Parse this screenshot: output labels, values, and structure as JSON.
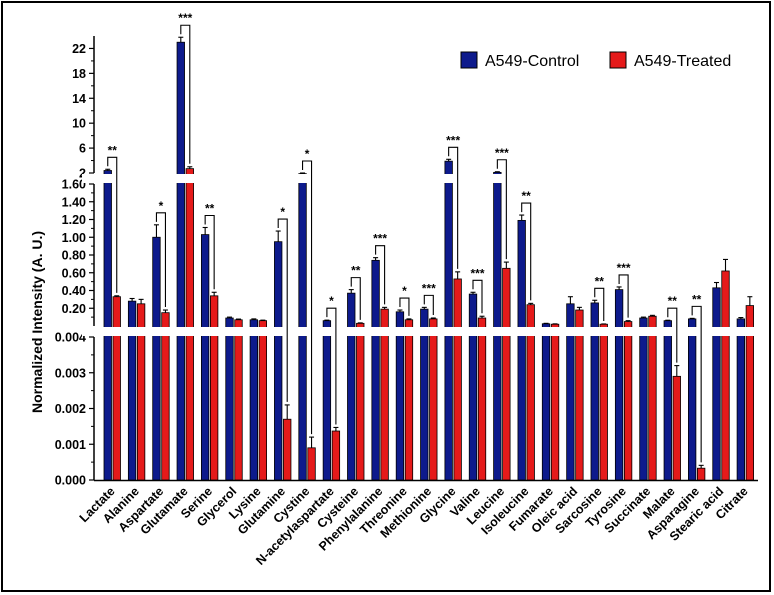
{
  "chart_data": {
    "type": "bar",
    "ylabel": "Normalized Intensity (A. U.)",
    "legend_position": "top-right",
    "colors": {
      "control": "#0d1a8c",
      "treated": "#e51a1a"
    },
    "y_segments": [
      {
        "range": [
          0,
          0.004
        ],
        "ticks": [
          "0.000",
          "0.001",
          "0.002",
          "0.003",
          "0.004"
        ]
      },
      {
        "range": [
          0,
          1.6
        ],
        "ticks": [
          "0.20",
          "0.40",
          "0.60",
          "0.80",
          "1.00",
          "1.20",
          "1.40",
          "1.60"
        ]
      },
      {
        "range": [
          2,
          24
        ],
        "ticks": [
          "2",
          "6",
          "10",
          "14",
          "18",
          "22"
        ]
      }
    ],
    "categories": [
      "Lactate",
      "Alanine",
      "Aspartate",
      "Glutamate",
      "Serine",
      "Glycerol",
      "Lysine",
      "Glutamine",
      "Cystine",
      "N-acetylaspartate",
      "Cysteine",
      "Phenylalanine",
      "Threonine",
      "Methionine",
      "Glycine",
      "Valine",
      "Leucine",
      "Isoleucine",
      "Fumarate",
      "Oleic acid",
      "Sarcosine",
      "Tyrosine",
      "Succinate",
      "Malate",
      "Asparagine",
      "Stearic acid",
      "Citrate"
    ],
    "series": [
      {
        "name": "A549-Control",
        "values": [
          2.4,
          0.28,
          1.0,
          23,
          1.03,
          0.09,
          0.07,
          0.95,
          1.9,
          0.06,
          0.37,
          0.74,
          0.16,
          0.19,
          3.9,
          0.36,
          2.1,
          1.19,
          0.025,
          0.25,
          0.26,
          0.41,
          0.09,
          0.06,
          0.08,
          0.43,
          0.08
        ],
        "errors": [
          0.2,
          0.03,
          0.14,
          0.8,
          0.08,
          0.01,
          0.01,
          0.12,
          0.1,
          0.006,
          0.04,
          0.03,
          0.02,
          0.02,
          0.3,
          0.02,
          0.1,
          0.06,
          0.005,
          0.08,
          0.03,
          0.03,
          0.01,
          0.005,
          0.006,
          0.06,
          0.015
        ]
      },
      {
        "name": "A549-Treated",
        "values": [
          0.33,
          0.25,
          0.15,
          2.7,
          0.34,
          0.07,
          0.06,
          0.0017,
          0.0009,
          0.00137,
          0.03,
          0.19,
          0.07,
          0.08,
          0.53,
          0.09,
          0.65,
          0.24,
          0.02,
          0.18,
          0.02,
          0.05,
          0.11,
          0.0029,
          0.00033,
          0.62,
          0.23
        ],
        "errors": [
          0.01,
          0.05,
          0.03,
          0.3,
          0.04,
          0.008,
          0.006,
          0.0004,
          0.0003,
          0.0001,
          0.005,
          0.02,
          0.01,
          0.01,
          0.08,
          0.02,
          0.07,
          0.015,
          0.004,
          0.03,
          0.003,
          0.01,
          0.01,
          0.0003,
          8e-05,
          0.13,
          0.1
        ]
      }
    ],
    "significance": [
      "**",
      "",
      "*",
      "***",
      "**",
      "",
      "",
      "*",
      "*",
      "*",
      "**",
      "***",
      "*",
      "***",
      "***",
      "***",
      "***",
      "**",
      "",
      "",
      "**",
      "***",
      "",
      "**",
      "**",
      "",
      ""
    ]
  }
}
